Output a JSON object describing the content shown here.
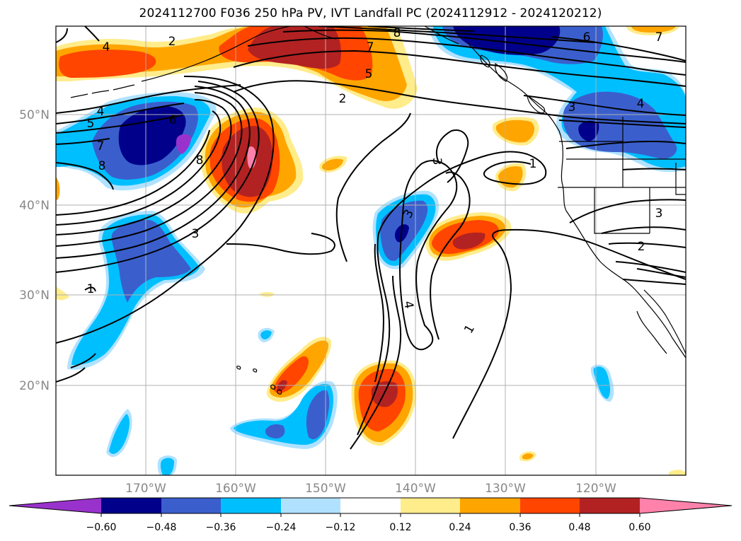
{
  "title": "2024112700 F036 250 hPa PV, IVT Landfall PC (2024112912 - 2024120212)",
  "lat_labels": [
    "50°N",
    "40°N",
    "30°N",
    "20°N"
  ],
  "lon_labels": [
    "170°W",
    "160°W",
    "150°W",
    "140°W",
    "130°W",
    "120°W"
  ],
  "colorbar": {
    "ticks": [
      "−0.60",
      "−0.48",
      "−0.36",
      "−0.24",
      "−0.12",
      "0.12",
      "0.24",
      "0.36",
      "0.48",
      "0.60"
    ],
    "colors": [
      "#9932cc",
      "#00008b",
      "#3a5fcd",
      "#00bfff",
      "#b0e2ff",
      "#ffffff",
      "#ffec8b",
      "#ffa500",
      "#ff4500",
      "#b22222",
      "#ff82ab"
    ]
  },
  "colors": {
    "pos1": "#ffec8b",
    "pos2": "#ffa500",
    "pos3": "#ff4500",
    "pos4": "#b22222",
    "pos5": "#ff82ab",
    "neg1": "#b0e2ff",
    "neg2": "#00bfff",
    "neg3": "#3a5fcd",
    "neg4": "#00008b",
    "neg5": "#9932cc"
  },
  "contour_labels": [
    {
      "text": "4"
    },
    {
      "text": "2"
    },
    {
      "text": "8"
    },
    {
      "text": "7"
    },
    {
      "text": "5"
    },
    {
      "text": "6"
    },
    {
      "text": "7"
    },
    {
      "text": "2"
    },
    {
      "text": "4"
    },
    {
      "text": "5"
    },
    {
      "text": "6"
    },
    {
      "text": "7"
    },
    {
      "text": "8"
    },
    {
      "text": "8"
    },
    {
      "text": "3"
    },
    {
      "text": "1"
    },
    {
      "text": "3"
    },
    {
      "text": "1"
    },
    {
      "text": "3"
    },
    {
      "text": "4"
    },
    {
      "text": "3"
    },
    {
      "text": "4"
    },
    {
      "text": "1"
    },
    {
      "text": "3"
    },
    {
      "text": "2"
    }
  ]
}
